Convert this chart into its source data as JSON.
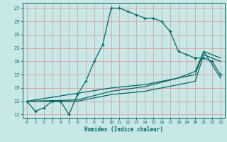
{
  "xlabel": "Humidex (Indice chaleur)",
  "bg_color": "#c8e8e8",
  "line_color": "#006666",
  "grid_color": "#dda0a0",
  "xlim": [
    -0.5,
    23.5
  ],
  "ylim": [
    10.5,
    27.8
  ],
  "xticks": [
    0,
    1,
    2,
    3,
    4,
    5,
    6,
    7,
    8,
    9,
    10,
    11,
    12,
    13,
    14,
    15,
    16,
    17,
    18,
    19,
    20,
    21,
    22,
    23
  ],
  "yticks": [
    11,
    13,
    15,
    17,
    19,
    21,
    23,
    25,
    27
  ],
  "curve1_x": [
    0,
    1,
    2,
    3,
    4,
    5,
    6,
    7,
    8,
    9,
    10,
    11,
    12,
    13,
    14,
    15,
    16,
    17,
    18,
    19,
    20,
    21,
    22,
    23
  ],
  "curve1_y": [
    13.0,
    11.5,
    12.0,
    13.0,
    13.0,
    11.0,
    14.0,
    16.0,
    19.0,
    21.5,
    27.0,
    27.0,
    26.5,
    26.0,
    25.5,
    25.5,
    25.0,
    23.5,
    20.5,
    20.0,
    19.5,
    19.5,
    19.0,
    17.0
  ],
  "curve2_x": [
    0,
    6,
    10,
    14,
    18,
    20,
    21,
    23
  ],
  "curve2_y": [
    13.0,
    13.0,
    14.0,
    14.5,
    15.5,
    16.0,
    20.0,
    19.0
  ],
  "curve3_x": [
    0,
    6,
    10,
    14,
    18,
    20,
    21,
    23
  ],
  "curve3_y": [
    13.0,
    13.2,
    14.5,
    15.2,
    16.5,
    17.5,
    20.5,
    19.5
  ],
  "curve4_x": [
    0,
    10,
    14,
    18,
    20,
    21,
    23
  ],
  "curve4_y": [
    13.0,
    15.0,
    15.5,
    16.5,
    17.0,
    20.5,
    16.5
  ]
}
